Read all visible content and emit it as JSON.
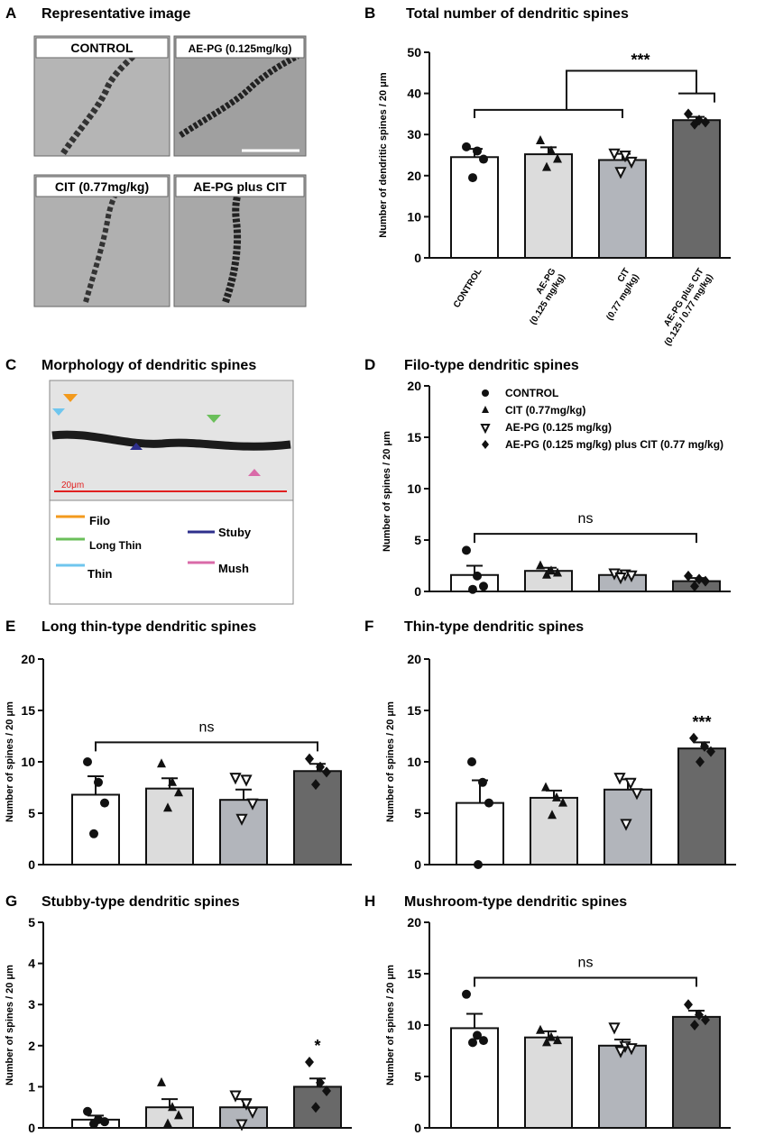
{
  "colors": {
    "control": "#ffffff",
    "aepg": "#dcdcdc",
    "cit": "#b2b5bb",
    "combo": "#696969",
    "filo": "#f39a1c",
    "long_thin": "#6abf5a",
    "thin": "#6fc6ee",
    "stubby": "#2e2f8c",
    "mush": "#d96aa8"
  },
  "panel_a": {
    "letter": "A",
    "title": "Representative image",
    "photos": [
      {
        "label": "CONTROL"
      },
      {
        "label": "AE-PG (0.125mg/kg)"
      },
      {
        "label": "CIT (0.77mg/kg)"
      },
      {
        "label": "AE-PG plus CIT"
      }
    ],
    "scale_bar": "10 μm"
  },
  "panel_c": {
    "letter": "C",
    "title": "Morphology of dendritic spines",
    "scale": "20μm",
    "legend": [
      {
        "name": "Filo",
        "color": "#f39a1c"
      },
      {
        "name": "Long Thin",
        "color": "#6abf5a"
      },
      {
        "name": "Thin",
        "color": "#6fc6ee"
      },
      {
        "name": "Stuby",
        "color": "#2e2f8c"
      },
      {
        "name": "Mush",
        "color": "#d96aa8"
      }
    ]
  },
  "chart_data": [
    {
      "id": "B",
      "letter": "B",
      "type": "bar",
      "title": "Total number of dendritic spines",
      "ylabel": "Number of dendritic spines / 20 μm",
      "ylim": [
        0,
        50
      ],
      "yticks": [
        0,
        10,
        20,
        30,
        40,
        50
      ],
      "categories": [
        "CONTROL",
        "AE-PG\n(0.125 mg/kg)",
        "CIT\n(0.77 mg/kg)",
        "AE-PG plus CIT\n(0.125 / 0.77 mg/kg)"
      ],
      "values": [
        24.5,
        25.2,
        23.8,
        33.5
      ],
      "sem": [
        2.0,
        1.7,
        1.5,
        0.8
      ],
      "points": [
        [
          27,
          26,
          24,
          19.5
        ],
        [
          28.5,
          26,
          24,
          22
        ],
        [
          25.5,
          25,
          23.5,
          21
        ],
        [
          35,
          33.5,
          33,
          32.5
        ]
      ],
      "markers": [
        "circle",
        "triangle",
        "triangle-down",
        "diamond"
      ],
      "significance": "***",
      "sig_note": "control, AE-PG and CIT vs AE-PG plus CIT"
    },
    {
      "id": "D",
      "letter": "D",
      "type": "bar",
      "title": "Filo-type dendritic spines",
      "ylabel": "Number of spines / 20 μm",
      "ylim": [
        0,
        20
      ],
      "yticks": [
        0,
        5,
        10,
        15,
        20
      ],
      "values": [
        1.6,
        2.0,
        1.6,
        1.0
      ],
      "sem": [
        0.9,
        0.3,
        0.2,
        0.3
      ],
      "points": [
        [
          4.0,
          1.5,
          0.5,
          0.2
        ],
        [
          2.5,
          2.0,
          1.8,
          1.6
        ],
        [
          1.8,
          1.7,
          1.6,
          1.4
        ],
        [
          1.5,
          1.2,
          1.0,
          0.5
        ]
      ],
      "markers": [
        "circle",
        "triangle",
        "triangle-down",
        "diamond"
      ],
      "legend": [
        "CONTROL",
        "CIT (0.77mg/kg)",
        "AE-PG (0.125 mg/kg)",
        "AE-PG (0.125 mg/kg) plus CIT (0.77 mg/kg)"
      ],
      "legend_markers": [
        "circle",
        "triangle",
        "triangle-down",
        "diamond"
      ],
      "significance": "ns"
    },
    {
      "id": "E",
      "letter": "E",
      "type": "bar",
      "title": "Long thin-type dendritic spines",
      "ylabel": "Number of spines / 20 μm",
      "ylim": [
        0,
        20
      ],
      "yticks": [
        0,
        5,
        10,
        15,
        20
      ],
      "values": [
        6.8,
        7.4,
        6.3,
        9.1
      ],
      "sem": [
        1.8,
        1.0,
        1.0,
        0.7
      ],
      "points": [
        [
          10,
          8,
          6,
          3
        ],
        [
          9.8,
          8,
          7,
          5.5
        ],
        [
          8.5,
          8.3,
          6,
          4.5
        ],
        [
          10.3,
          9.5,
          9,
          7.8
        ]
      ],
      "markers": [
        "circle",
        "triangle",
        "triangle-down",
        "diamond"
      ],
      "significance": "ns"
    },
    {
      "id": "F",
      "letter": "F",
      "type": "bar",
      "title": "Thin-type dendritic spines",
      "ylabel": "Number of spines / 20 μm",
      "ylim": [
        0,
        20
      ],
      "yticks": [
        0,
        5,
        10,
        15,
        20
      ],
      "values": [
        6.0,
        6.5,
        7.3,
        11.3
      ],
      "sem": [
        2.2,
        0.7,
        1.0,
        0.6
      ],
      "points": [
        [
          10,
          8,
          6,
          0
        ],
        [
          7.5,
          6.5,
          6,
          4.8
        ],
        [
          8.5,
          8,
          7,
          4
        ],
        [
          12.3,
          11.5,
          11,
          10
        ]
      ],
      "markers": [
        "circle",
        "triangle",
        "triangle-down",
        "diamond"
      ],
      "significance": "***"
    },
    {
      "id": "G",
      "letter": "G",
      "type": "bar",
      "title": "Stubby-type dendritic spines",
      "ylabel": "Number of spines / 20 μm",
      "ylim": [
        0,
        5
      ],
      "yticks": [
        0,
        1,
        2,
        3,
        4,
        5
      ],
      "values": [
        0.2,
        0.5,
        0.5,
        1.0
      ],
      "sem": [
        0.1,
        0.2,
        0.2,
        0.2
      ],
      "points": [
        [
          0.4,
          0.2,
          0.15,
          0.1
        ],
        [
          1.1,
          0.5,
          0.3,
          0.1
        ],
        [
          0.8,
          0.6,
          0.4,
          0.1
        ],
        [
          1.6,
          1.1,
          0.9,
          0.5
        ]
      ],
      "markers": [
        "circle",
        "triangle",
        "triangle-down",
        "diamond"
      ],
      "significance": "*"
    },
    {
      "id": "H",
      "letter": "H",
      "type": "bar",
      "title": "Mushroom-type dendritic spines",
      "ylabel": "Number of spines / 20 μm",
      "ylim": [
        0,
        20
      ],
      "yticks": [
        0,
        5,
        10,
        15,
        20
      ],
      "values": [
        9.7,
        8.8,
        8.0,
        10.8
      ],
      "sem": [
        1.4,
        0.6,
        0.6,
        0.6
      ],
      "points": [
        [
          13,
          9,
          8.5,
          8.3
        ],
        [
          9.5,
          8.8,
          8.5,
          8.3
        ],
        [
          9.8,
          8,
          7.8,
          7.5
        ],
        [
          12,
          11,
          10.5,
          10
        ]
      ],
      "markers": [
        "circle",
        "triangle",
        "triangle-down",
        "diamond"
      ],
      "significance": "ns"
    }
  ]
}
